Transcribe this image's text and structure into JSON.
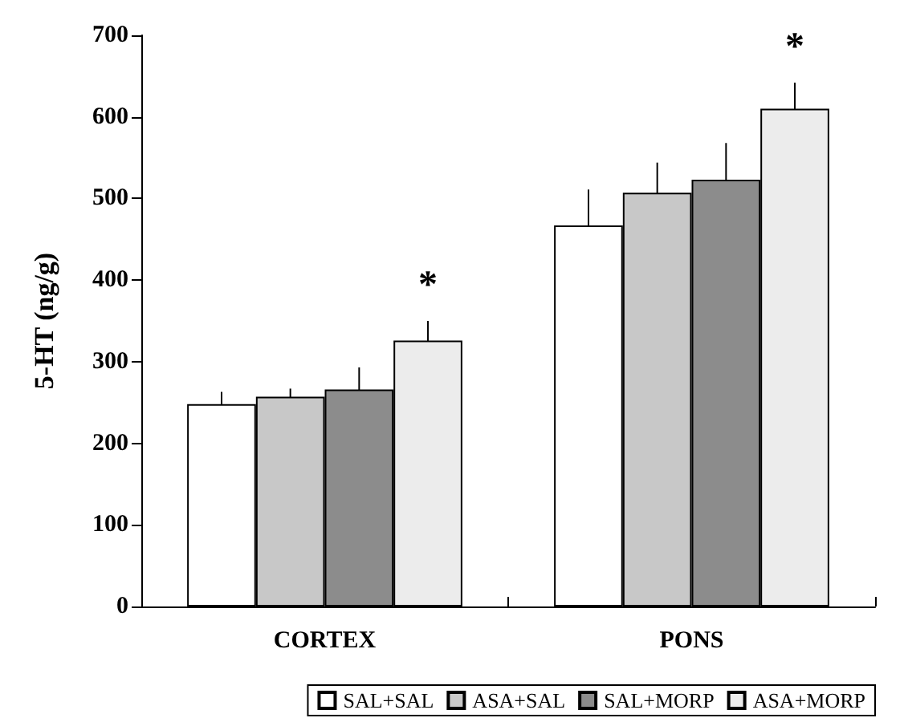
{
  "chart_data": {
    "type": "bar",
    "ylabel": "5-HT (ng/g)",
    "categories": [
      "CORTEX",
      "PONS"
    ],
    "series": [
      {
        "name": "SAL+SAL",
        "color": "#ffffff",
        "values": [
          248,
          467
        ],
        "errors": [
          15,
          44
        ]
      },
      {
        "name": "ASA+SAL",
        "color": "#c8c8c8",
        "values": [
          257,
          507
        ],
        "errors": [
          10,
          37
        ]
      },
      {
        "name": "SAL+MORP",
        "color": "#8c8c8c",
        "values": [
          266,
          523
        ],
        "errors": [
          27,
          45
        ]
      },
      {
        "name": "ASA+MORP",
        "color": "#ececec",
        "values": [
          326,
          610
        ],
        "errors": [
          24,
          32
        ]
      }
    ],
    "ylim": [
      0,
      700
    ],
    "yticks": [
      0,
      100,
      200,
      300,
      400,
      500,
      600,
      700
    ],
    "grid": false,
    "legend": "bottom",
    "annotations": [
      "*",
      "*"
    ]
  }
}
